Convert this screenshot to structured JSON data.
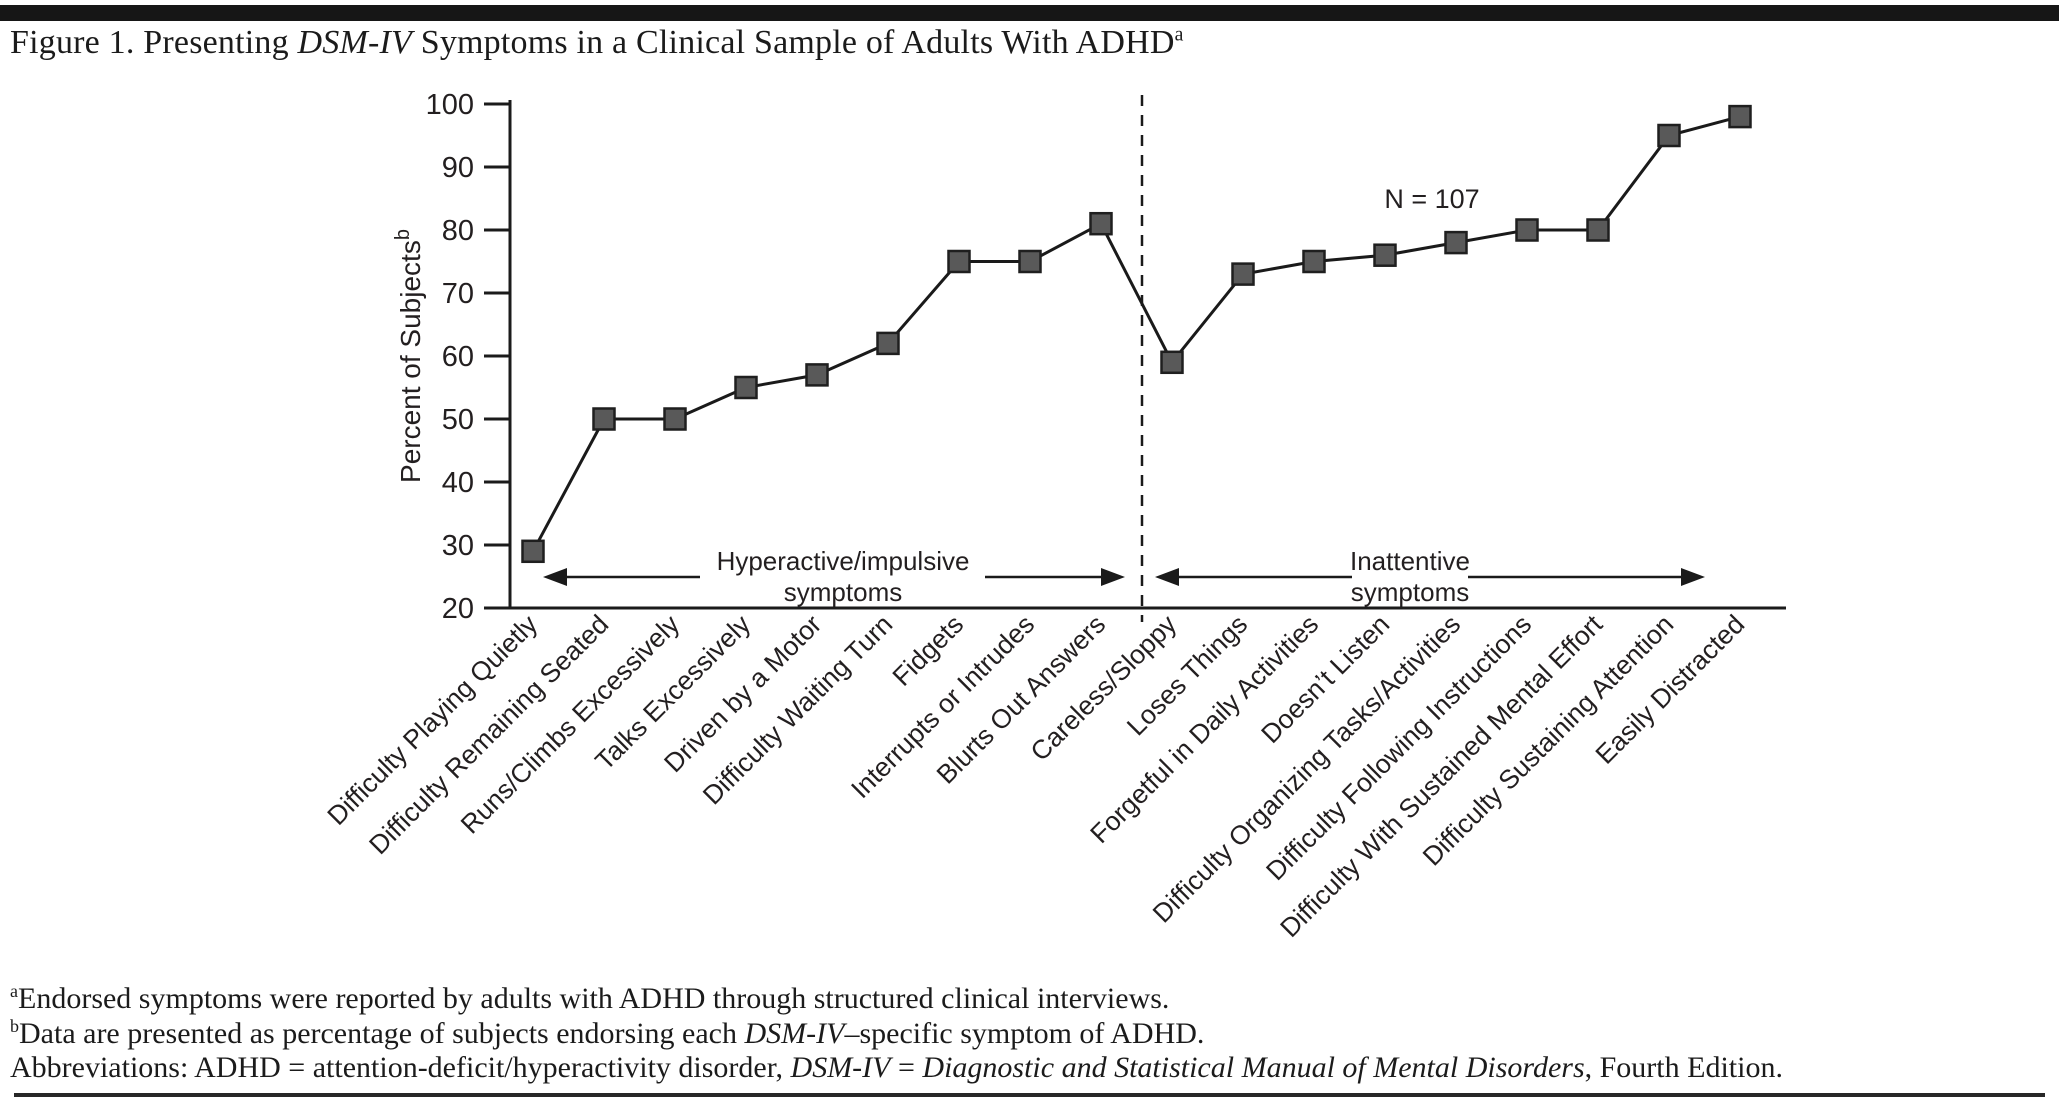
{
  "figure": {
    "title": {
      "prefix": "Figure 1. Presenting ",
      "italic": "DSM-IV",
      "suffix": " Symptoms in a Clinical Sample of Adults With ADHD",
      "superscript": "a"
    },
    "footnotes": {
      "a": {
        "sup": "a",
        "text": "Endorsed symptoms were reported by adults with ADHD through structured clinical interviews."
      },
      "b": {
        "sup": "b",
        "pre": "Data are presented as percentage of subjects endorsing each ",
        "italic": "DSM-IV",
        "post": "–specific symptom of ADHD."
      },
      "abbr": {
        "pre": "Abbreviations: ADHD = attention-deficit/hyperactivity disorder, ",
        "italic1": "DSM-IV",
        "mid": " = ",
        "italic2": "Diagnostic and Statistical Manual of Mental Disorders",
        "post": ", Fourth Edition."
      }
    }
  },
  "chart_data": {
    "type": "line",
    "title": "",
    "xlabel": "",
    "ylabel": "Percent of Subjects",
    "ylabel_superscript": "b",
    "ylim": [
      20,
      100
    ],
    "ytick_step": 10,
    "yticks": [
      20,
      30,
      40,
      50,
      60,
      70,
      80,
      90,
      100
    ],
    "sample_label": "N = 107",
    "legend": "none",
    "grid": false,
    "marker": "square",
    "categories": [
      "Difficulty Playing Quietly",
      "Difficulty Remaining Seated",
      "Runs/Climbs Excessively",
      "Talks Excessively",
      "Driven by a Motor",
      "Difficulty Waiting Turn",
      "Fidgets",
      "Interrupts or Intrudes",
      "Blurts Out Answers",
      "Careless/Sloppy",
      "Loses Things",
      "Forgetful in Daily Activities",
      "Doesn’t Listen",
      "Difficulty Organizing Tasks/Activities",
      "Difficulty Following Instructions",
      "Difficulty With Sustained Mental Effort",
      "Difficulty Sustaining Attention",
      "Easily Distracted"
    ],
    "values": [
      29,
      50,
      50,
      55,
      57,
      62,
      75,
      75,
      81,
      59,
      73,
      75,
      76,
      78,
      80,
      80,
      95,
      98
    ],
    "divider_after_index": 8,
    "groups": [
      {
        "label_line1": "Hyperactive/impulsive",
        "label_line2": "symptoms",
        "from": 0,
        "to": 8
      },
      {
        "label_line1": "Inattentive",
        "label_line2": "symptoms",
        "from": 9,
        "to": 17
      }
    ],
    "colors": {
      "line": "#1a1a1a",
      "marker_fill": "#595959",
      "marker_stroke": "#1f1f1f",
      "text": "#231f20",
      "axis": "#1b1b1b"
    }
  }
}
